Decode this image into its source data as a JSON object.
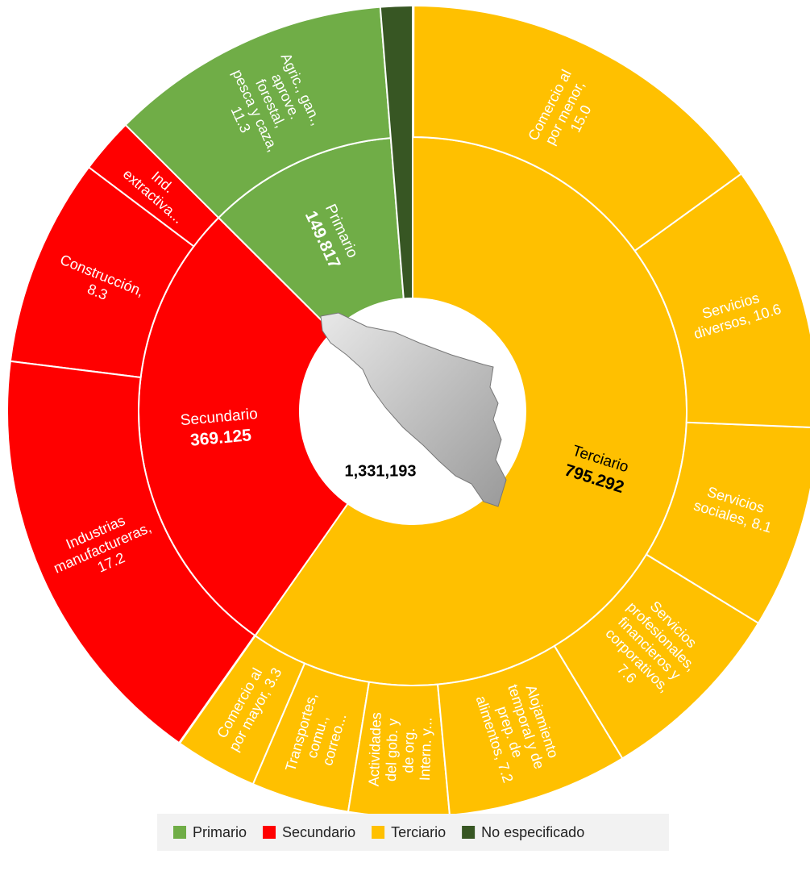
{
  "chart_data": {
    "type": "sunburst",
    "total": 1331193,
    "total_label": "1,331,193",
    "series": [
      {
        "name": "Primario",
        "color": "#70ad47",
        "value": 149817,
        "value_label": "149.817",
        "labels": [
          "Agric., gan., aprove. forestal, pesca y caza, 11.3"
        ],
        "values": [
          11.3
        ]
      },
      {
        "name": "Secundario",
        "color": "#ff0000",
        "value": 369125,
        "value_label": "369.125",
        "labels": [
          "Ind. extractiva...",
          "Construcción, 8.3",
          "Industrias manufactureras, 17.2"
        ],
        "values": [
          2.2,
          8.3,
          17.2
        ]
      },
      {
        "name": "Terciario",
        "color": "#ffc000",
        "value": 795292,
        "value_label": "795.292",
        "labels": [
          "Comercio al por mayor, 3.3",
          "Transportes, comu., correo...",
          "Actividades del gob. y de org. Intern. y...",
          "Alojamiento temporal y de prep. de alimentos, 7.2",
          "Servicios profesionales, financieros y corporativos, 7.6",
          "Servicios sociales, 8.1",
          "Servicios diversos, 10.6",
          "Comercio al por menor, 15.0"
        ],
        "values": [
          3.3,
          3.9,
          4.0,
          7.2,
          7.6,
          8.1,
          10.6,
          15.0
        ]
      },
      {
        "name": "No especificado",
        "color": "#375623",
        "value": 16959,
        "labels": [],
        "values": []
      }
    ]
  }
}
